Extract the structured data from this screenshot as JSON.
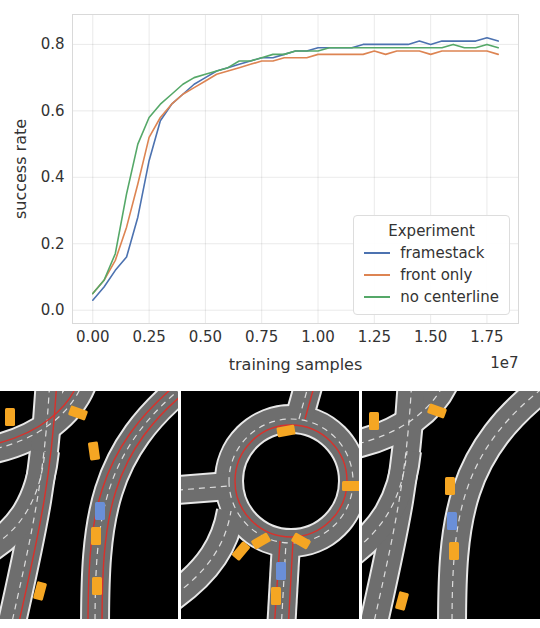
{
  "chart_data": {
    "type": "line",
    "x_label": "training samples",
    "y_label": "success rate",
    "annotations": [
      {
        "text": "1e7"
      }
    ],
    "legend_title": "Experiment",
    "legend": "lower right",
    "grid": true,
    "xlim": [
      -0.09,
      1.89
    ],
    "ylim": [
      -0.04,
      0.89
    ],
    "xticks": [
      {
        "value": 0,
        "label": "0.00"
      },
      {
        "value": 0.25,
        "label": "0.25"
      },
      {
        "value": 0.5,
        "label": "0.50"
      },
      {
        "value": 0.75,
        "label": "0.75"
      },
      {
        "value": 1.0,
        "label": "1.00"
      },
      {
        "value": 1.25,
        "label": "1.25"
      },
      {
        "value": 1.5,
        "label": "1.50"
      },
      {
        "value": 1.75,
        "label": "1.75"
      }
    ],
    "yticks": [
      {
        "value": 0,
        "label": "0.0"
      },
      {
        "value": 0.2,
        "label": "0.2"
      },
      {
        "value": 0.4,
        "label": "0.4"
      },
      {
        "value": 0.6,
        "label": "0.6"
      },
      {
        "value": 0.8,
        "label": "0.8"
      }
    ],
    "x": [
      0,
      0.05,
      0.1,
      0.15,
      0.2,
      0.25,
      0.3,
      0.35,
      0.4,
      0.45,
      0.5,
      0.55,
      0.6,
      0.65,
      0.7,
      0.75,
      0.8,
      0.85,
      0.9,
      0.95,
      1.0,
      1.05,
      1.1,
      1.15,
      1.2,
      1.25,
      1.3,
      1.35,
      1.4,
      1.45,
      1.5,
      1.55,
      1.6,
      1.65,
      1.7,
      1.75,
      1.8
    ],
    "series": [
      {
        "name": "framestack",
        "color": "#4c72b0",
        "values": [
          0.03,
          0.07,
          0.12,
          0.16,
          0.28,
          0.45,
          0.57,
          0.62,
          0.65,
          0.68,
          0.7,
          0.72,
          0.73,
          0.74,
          0.75,
          0.76,
          0.76,
          0.77,
          0.78,
          0.78,
          0.79,
          0.79,
          0.79,
          0.79,
          0.8,
          0.8,
          0.8,
          0.8,
          0.8,
          0.81,
          0.8,
          0.81,
          0.81,
          0.81,
          0.81,
          0.82,
          0.81
        ]
      },
      {
        "name": "front only",
        "color": "#dd8452",
        "values": [
          0.05,
          0.09,
          0.15,
          0.25,
          0.38,
          0.52,
          0.58,
          0.62,
          0.65,
          0.67,
          0.69,
          0.71,
          0.72,
          0.73,
          0.74,
          0.75,
          0.75,
          0.76,
          0.76,
          0.76,
          0.77,
          0.77,
          0.77,
          0.77,
          0.77,
          0.78,
          0.77,
          0.78,
          0.78,
          0.78,
          0.77,
          0.78,
          0.78,
          0.78,
          0.78,
          0.78,
          0.77
        ]
      },
      {
        "name": "no centerline",
        "color": "#55a868",
        "values": [
          0.05,
          0.09,
          0.17,
          0.35,
          0.5,
          0.58,
          0.62,
          0.65,
          0.68,
          0.7,
          0.71,
          0.72,
          0.73,
          0.75,
          0.75,
          0.76,
          0.77,
          0.77,
          0.78,
          0.78,
          0.78,
          0.79,
          0.79,
          0.79,
          0.79,
          0.79,
          0.79,
          0.79,
          0.79,
          0.79,
          0.79,
          0.79,
          0.8,
          0.79,
          0.79,
          0.8,
          0.79
        ]
      }
    ]
  }
}
